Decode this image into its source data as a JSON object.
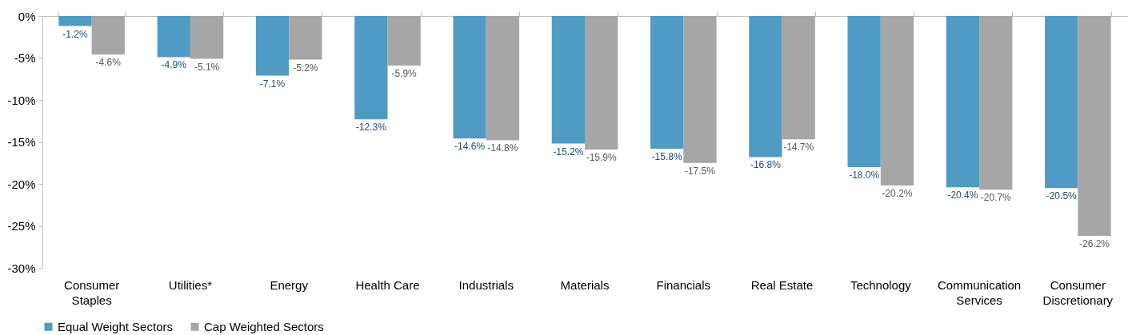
{
  "chart_data": {
    "type": "bar",
    "categories": [
      "Consumer Staples",
      "Utilities*",
      "Energy",
      "Health Care",
      "Industrials",
      "Materials",
      "Financials",
      "Real Estate",
      "Technology",
      "Communication Services",
      "Consumer Discretionary"
    ],
    "series": [
      {
        "name": "Equal Weight Sectors",
        "color": "#4f9bc3",
        "values": [
          -1.2,
          -4.9,
          -7.1,
          -12.3,
          -14.6,
          -15.2,
          -15.8,
          -16.8,
          -18.0,
          -20.4,
          -20.5
        ],
        "value_labels": [
          "-1.2%",
          "-4.9%",
          "-7.1%",
          "-12.3%",
          "-14.6%",
          "-15.2%",
          "-15.8%",
          "-16.8%",
          "-18.0%",
          "-20.4%",
          "-20.5%"
        ]
      },
      {
        "name": "Cap Weighted Sectors",
        "color": "#a6a6a6",
        "values": [
          -4.6,
          -5.1,
          -5.2,
          -5.9,
          -14.8,
          -15.9,
          -17.5,
          -14.7,
          -20.2,
          -20.7,
          -26.2
        ],
        "value_labels": [
          "-4.6%",
          "-5.1%",
          "-5.2%",
          "-5.9%",
          "-14.8%",
          "-15.9%",
          "-17.5%",
          "-14.7%",
          "-20.2%",
          "-20.7%",
          "-26.2%"
        ]
      }
    ],
    "ylim": [
      -30,
      0
    ],
    "yticks": [
      {
        "value": -30,
        "label": "-30%"
      },
      {
        "value": -25,
        "label": "-25%"
      },
      {
        "value": -20,
        "label": "-20%"
      },
      {
        "value": -15,
        "label": "-15%"
      },
      {
        "value": -10,
        "label": "-10%"
      },
      {
        "value": -5,
        "label": "-5%"
      },
      {
        "value": 0,
        "label": "0%"
      }
    ],
    "grid": false,
    "legend": "bottom"
  }
}
